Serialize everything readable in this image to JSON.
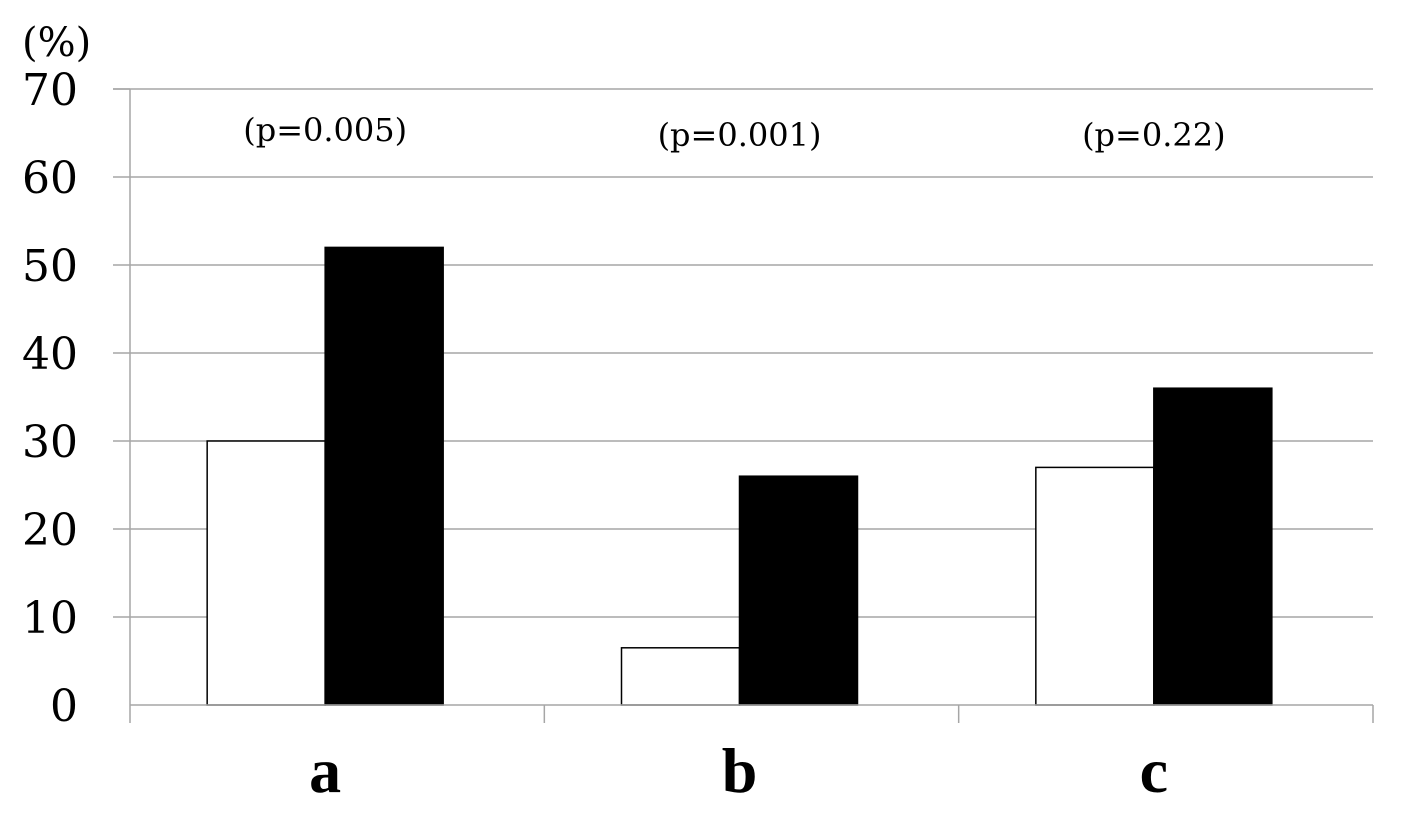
{
  "chart_data": {
    "type": "bar",
    "categories": [
      "a",
      "b",
      "c"
    ],
    "series": [
      {
        "values": [
          30,
          6.5,
          27
        ],
        "color": "#ffffff",
        "stroke": "#000000"
      },
      {
        "values": [
          52,
          26,
          36
        ],
        "color": "#000000",
        "stroke": "#000000"
      }
    ],
    "annotations": [
      "(p=0.005)",
      "(p=0.001)",
      "(p=0.22)"
    ],
    "ylabel": "(%)",
    "ylim": [
      0,
      70
    ],
    "yticks": [
      0,
      10,
      20,
      30,
      40,
      50,
      60,
      70
    ],
    "grid": true
  }
}
